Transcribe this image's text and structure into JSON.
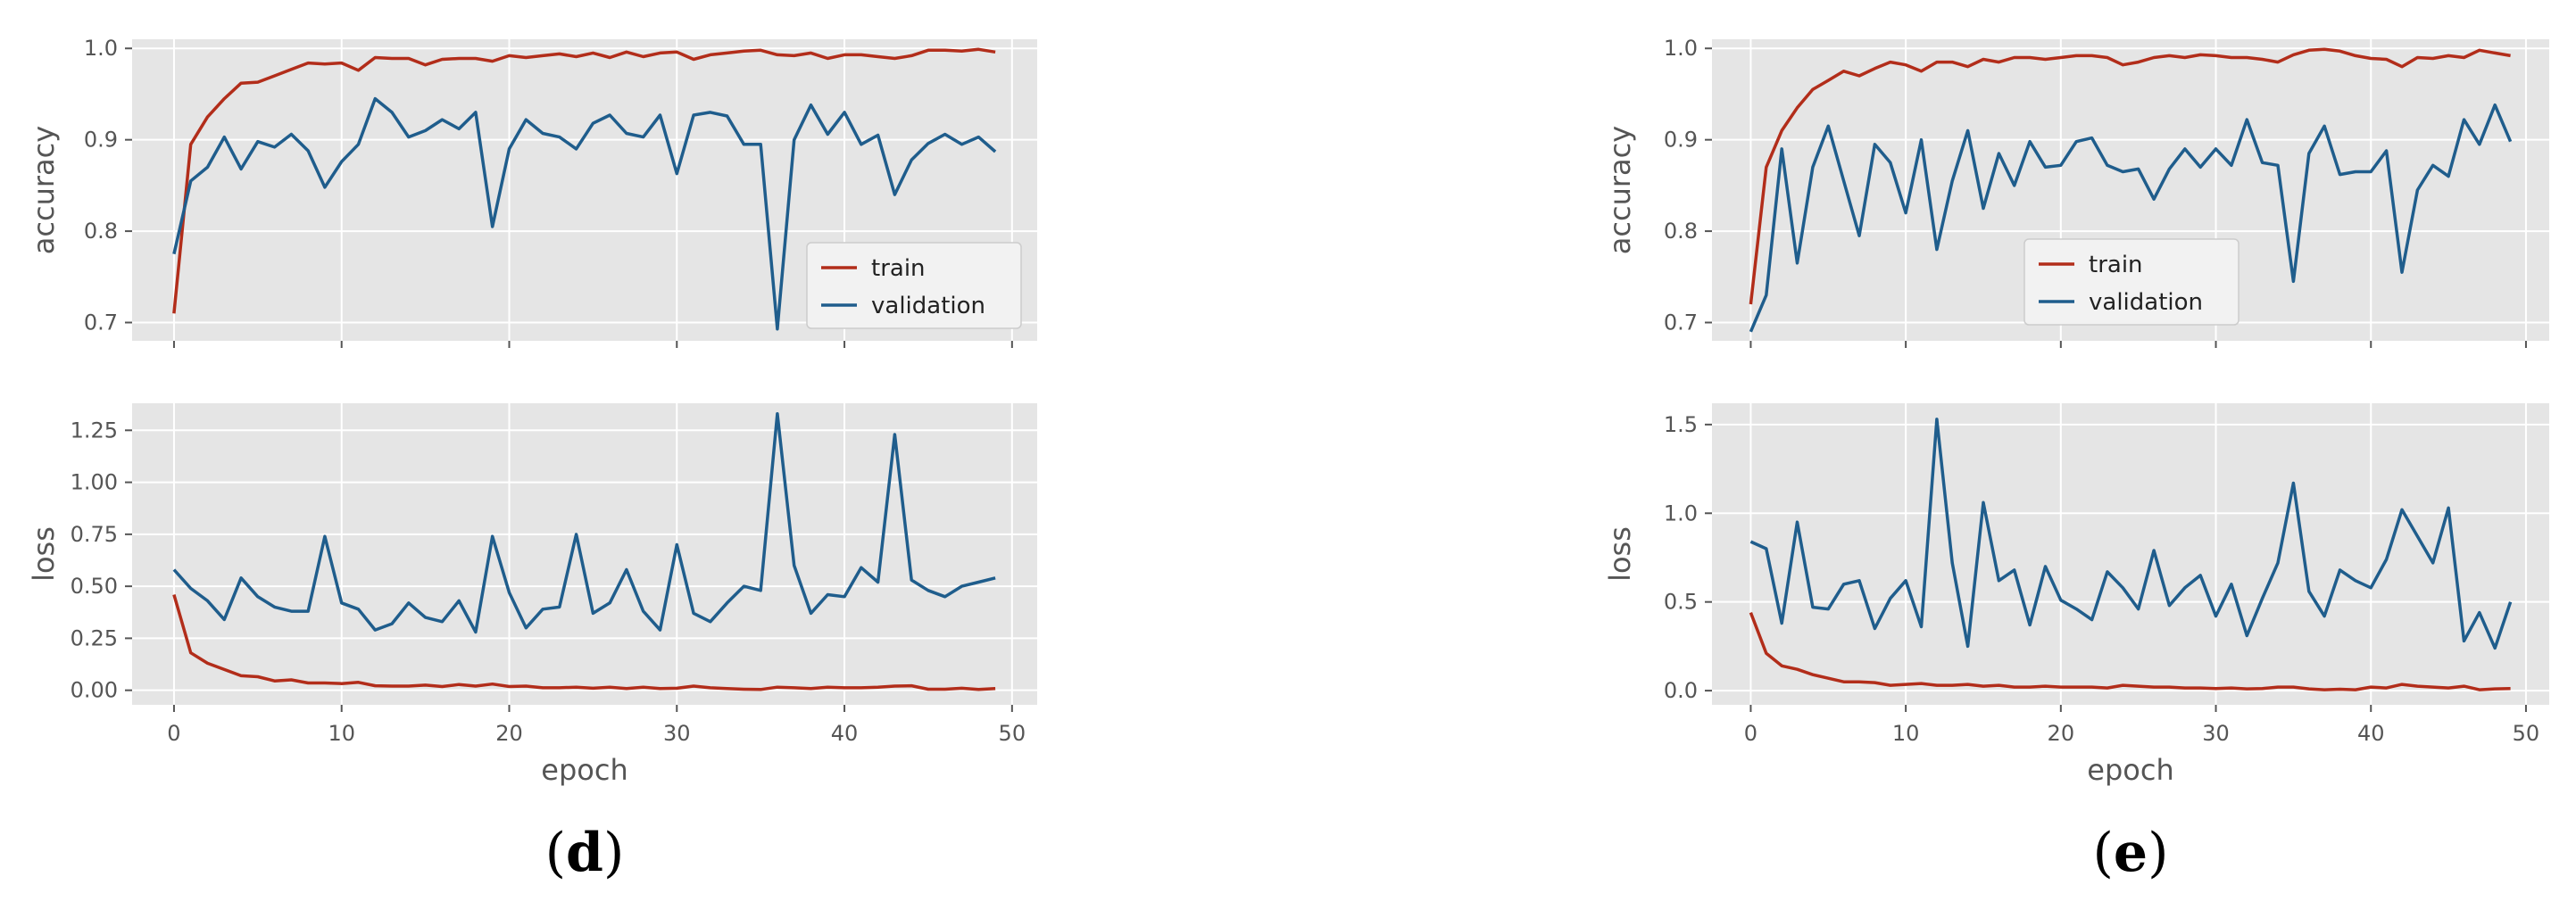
{
  "chart_data": [
    {
      "type": "line",
      "panel_label": "d",
      "x_tick_labels": [
        "0",
        "10",
        "20",
        "30",
        "40",
        "50"
      ],
      "xlabel": "epoch",
      "legend_placement": "lower-right of accuracy subplot",
      "colors": {
        "train": "#b22d1a",
        "validation": "#1f5d8c",
        "background": "#e5e5e5",
        "grid": "#ffffff"
      },
      "subplots": [
        {
          "ylabel": "accuracy",
          "ylim": [
            0.68,
            1.01
          ],
          "xlim": [
            -2.5,
            51.5
          ],
          "y_ticks": [
            0.7,
            0.8,
            0.9,
            1.0
          ],
          "y_tick_labels": [
            "0.7",
            "0.8",
            "0.9",
            "1.0"
          ],
          "legend": [
            "train",
            "validation"
          ],
          "series": [
            {
              "name": "train",
              "color": "#b22d1a",
              "values": [
                0.71,
                0.895,
                0.925,
                0.945,
                0.962,
                0.963,
                0.97,
                0.977,
                0.984,
                0.983,
                0.984,
                0.976,
                0.99,
                0.989,
                0.989,
                0.982,
                0.988,
                0.989,
                0.989,
                0.986,
                0.992,
                0.99,
                0.992,
                0.994,
                0.991,
                0.995,
                0.99,
                0.996,
                0.991,
                0.995,
                0.996,
                0.988,
                0.993,
                0.995,
                0.997,
                0.998,
                0.993,
                0.992,
                0.995,
                0.989,
                0.993,
                0.993,
                0.991,
                0.989,
                0.992,
                0.998,
                0.998,
                0.997,
                0.999,
                0.996
              ]
            },
            {
              "name": "validation",
              "color": "#1f5d8c",
              "values": [
                0.775,
                0.855,
                0.87,
                0.903,
                0.868,
                0.898,
                0.892,
                0.906,
                0.888,
                0.848,
                0.876,
                0.895,
                0.945,
                0.93,
                0.903,
                0.91,
                0.922,
                0.912,
                0.93,
                0.805,
                0.89,
                0.922,
                0.907,
                0.903,
                0.89,
                0.918,
                0.927,
                0.907,
                0.903,
                0.927,
                0.863,
                0.927,
                0.93,
                0.926,
                0.895,
                0.895,
                0.693,
                0.9,
                0.938,
                0.906,
                0.93,
                0.895,
                0.905,
                0.84,
                0.878,
                0.896,
                0.906,
                0.895,
                0.903,
                0.887
              ]
            }
          ]
        },
        {
          "ylabel": "loss",
          "ylim": [
            -0.07,
            1.38
          ],
          "xlim": [
            -2.5,
            51.5
          ],
          "y_ticks": [
            0.0,
            0.25,
            0.5,
            0.75,
            1.0,
            1.25
          ],
          "y_tick_labels": [
            "0.00",
            "0.25",
            "0.50",
            "0.75",
            "1.00",
            "1.25"
          ],
          "series": [
            {
              "name": "train",
              "color": "#b22d1a",
              "values": [
                0.46,
                0.18,
                0.13,
                0.1,
                0.07,
                0.065,
                0.045,
                0.05,
                0.035,
                0.035,
                0.032,
                0.038,
                0.022,
                0.02,
                0.02,
                0.025,
                0.018,
                0.028,
                0.02,
                0.03,
                0.018,
                0.02,
                0.012,
                0.012,
                0.015,
                0.01,
                0.015,
                0.008,
                0.015,
                0.008,
                0.01,
                0.02,
                0.012,
                0.008,
                0.005,
                0.004,
                0.015,
                0.012,
                0.008,
                0.015,
                0.012,
                0.012,
                0.015,
                0.02,
                0.022,
                0.005,
                0.005,
                0.01,
                0.004,
                0.008
              ]
            },
            {
              "name": "validation",
              "color": "#1f5d8c",
              "values": [
                0.58,
                0.49,
                0.43,
                0.34,
                0.54,
                0.45,
                0.4,
                0.38,
                0.38,
                0.74,
                0.42,
                0.39,
                0.29,
                0.32,
                0.42,
                0.35,
                0.33,
                0.43,
                0.28,
                0.74,
                0.47,
                0.3,
                0.39,
                0.4,
                0.75,
                0.37,
                0.42,
                0.58,
                0.38,
                0.29,
                0.7,
                0.37,
                0.33,
                0.42,
                0.5,
                0.48,
                1.33,
                0.6,
                0.37,
                0.46,
                0.45,
                0.59,
                0.52,
                1.23,
                0.53,
                0.48,
                0.45,
                0.5,
                0.52,
                0.54
              ]
            }
          ]
        }
      ]
    },
    {
      "type": "line",
      "panel_label": "e",
      "x_tick_labels": [
        "0",
        "10",
        "20",
        "30",
        "40",
        "50"
      ],
      "xlabel": "epoch",
      "legend_placement": "lower-center of accuracy subplot",
      "colors": {
        "train": "#b22d1a",
        "validation": "#1f5d8c",
        "background": "#e5e5e5",
        "grid": "#ffffff"
      },
      "subplots": [
        {
          "ylabel": "accuracy",
          "ylim": [
            0.68,
            1.01
          ],
          "xlim": [
            -2.5,
            51.5
          ],
          "y_ticks": [
            0.7,
            0.8,
            0.9,
            1.0
          ],
          "y_tick_labels": [
            "0.7",
            "0.8",
            "0.9",
            "1.0"
          ],
          "legend": [
            "train",
            "validation"
          ],
          "series": [
            {
              "name": "train",
              "color": "#b22d1a",
              "values": [
                0.72,
                0.87,
                0.91,
                0.935,
                0.955,
                0.965,
                0.975,
                0.97,
                0.978,
                0.985,
                0.982,
                0.975,
                0.985,
                0.985,
                0.98,
                0.988,
                0.985,
                0.99,
                0.99,
                0.988,
                0.99,
                0.992,
                0.992,
                0.99,
                0.982,
                0.985,
                0.99,
                0.992,
                0.99,
                0.993,
                0.992,
                0.99,
                0.99,
                0.988,
                0.985,
                0.993,
                0.998,
                0.999,
                0.997,
                0.992,
                0.989,
                0.988,
                0.98,
                0.99,
                0.989,
                0.992,
                0.99,
                0.998,
                0.995,
                0.992
              ]
            },
            {
              "name": "validation",
              "color": "#1f5d8c",
              "values": [
                0.69,
                0.73,
                0.89,
                0.765,
                0.87,
                0.915,
                0.855,
                0.795,
                0.895,
                0.875,
                0.82,
                0.9,
                0.78,
                0.855,
                0.91,
                0.825,
                0.885,
                0.85,
                0.898,
                0.87,
                0.872,
                0.898,
                0.902,
                0.872,
                0.865,
                0.868,
                0.835,
                0.868,
                0.89,
                0.87,
                0.89,
                0.872,
                0.922,
                0.875,
                0.872,
                0.745,
                0.885,
                0.915,
                0.862,
                0.865,
                0.865,
                0.888,
                0.755,
                0.845,
                0.872,
                0.86,
                0.922,
                0.895,
                0.938,
                0.898
              ]
            }
          ]
        },
        {
          "ylabel": "loss",
          "ylim": [
            -0.08,
            1.62
          ],
          "xlim": [
            -2.5,
            51.5
          ],
          "y_ticks": [
            0.0,
            0.5,
            1.0,
            1.5
          ],
          "y_tick_labels": [
            "0.0",
            "0.5",
            "1.0",
            "1.5"
          ],
          "series": [
            {
              "name": "train",
              "color": "#b22d1a",
              "values": [
                0.44,
                0.21,
                0.14,
                0.12,
                0.09,
                0.07,
                0.05,
                0.05,
                0.045,
                0.03,
                0.035,
                0.04,
                0.03,
                0.03,
                0.035,
                0.025,
                0.03,
                0.02,
                0.02,
                0.025,
                0.02,
                0.02,
                0.02,
                0.015,
                0.03,
                0.025,
                0.02,
                0.02,
                0.015,
                0.015,
                0.012,
                0.015,
                0.01,
                0.012,
                0.02,
                0.02,
                0.01,
                0.005,
                0.008,
                0.005,
                0.02,
                0.015,
                0.035,
                0.025,
                0.02,
                0.015,
                0.025,
                0.005,
                0.01,
                0.012
              ]
            },
            {
              "name": "validation",
              "color": "#1f5d8c",
              "values": [
                0.84,
                0.8,
                0.38,
                0.95,
                0.47,
                0.46,
                0.6,
                0.62,
                0.35,
                0.52,
                0.62,
                0.36,
                1.53,
                0.72,
                0.25,
                1.06,
                0.62,
                0.68,
                0.37,
                0.7,
                0.51,
                0.46,
                0.4,
                0.67,
                0.58,
                0.46,
                0.79,
                0.48,
                0.58,
                0.65,
                0.42,
                0.6,
                0.31,
                0.52,
                0.72,
                1.17,
                0.56,
                0.42,
                0.68,
                0.62,
                0.58,
                0.74,
                1.02,
                0.87,
                0.72,
                1.03,
                0.28,
                0.44,
                0.24,
                0.5
              ]
            }
          ]
        }
      ]
    }
  ]
}
